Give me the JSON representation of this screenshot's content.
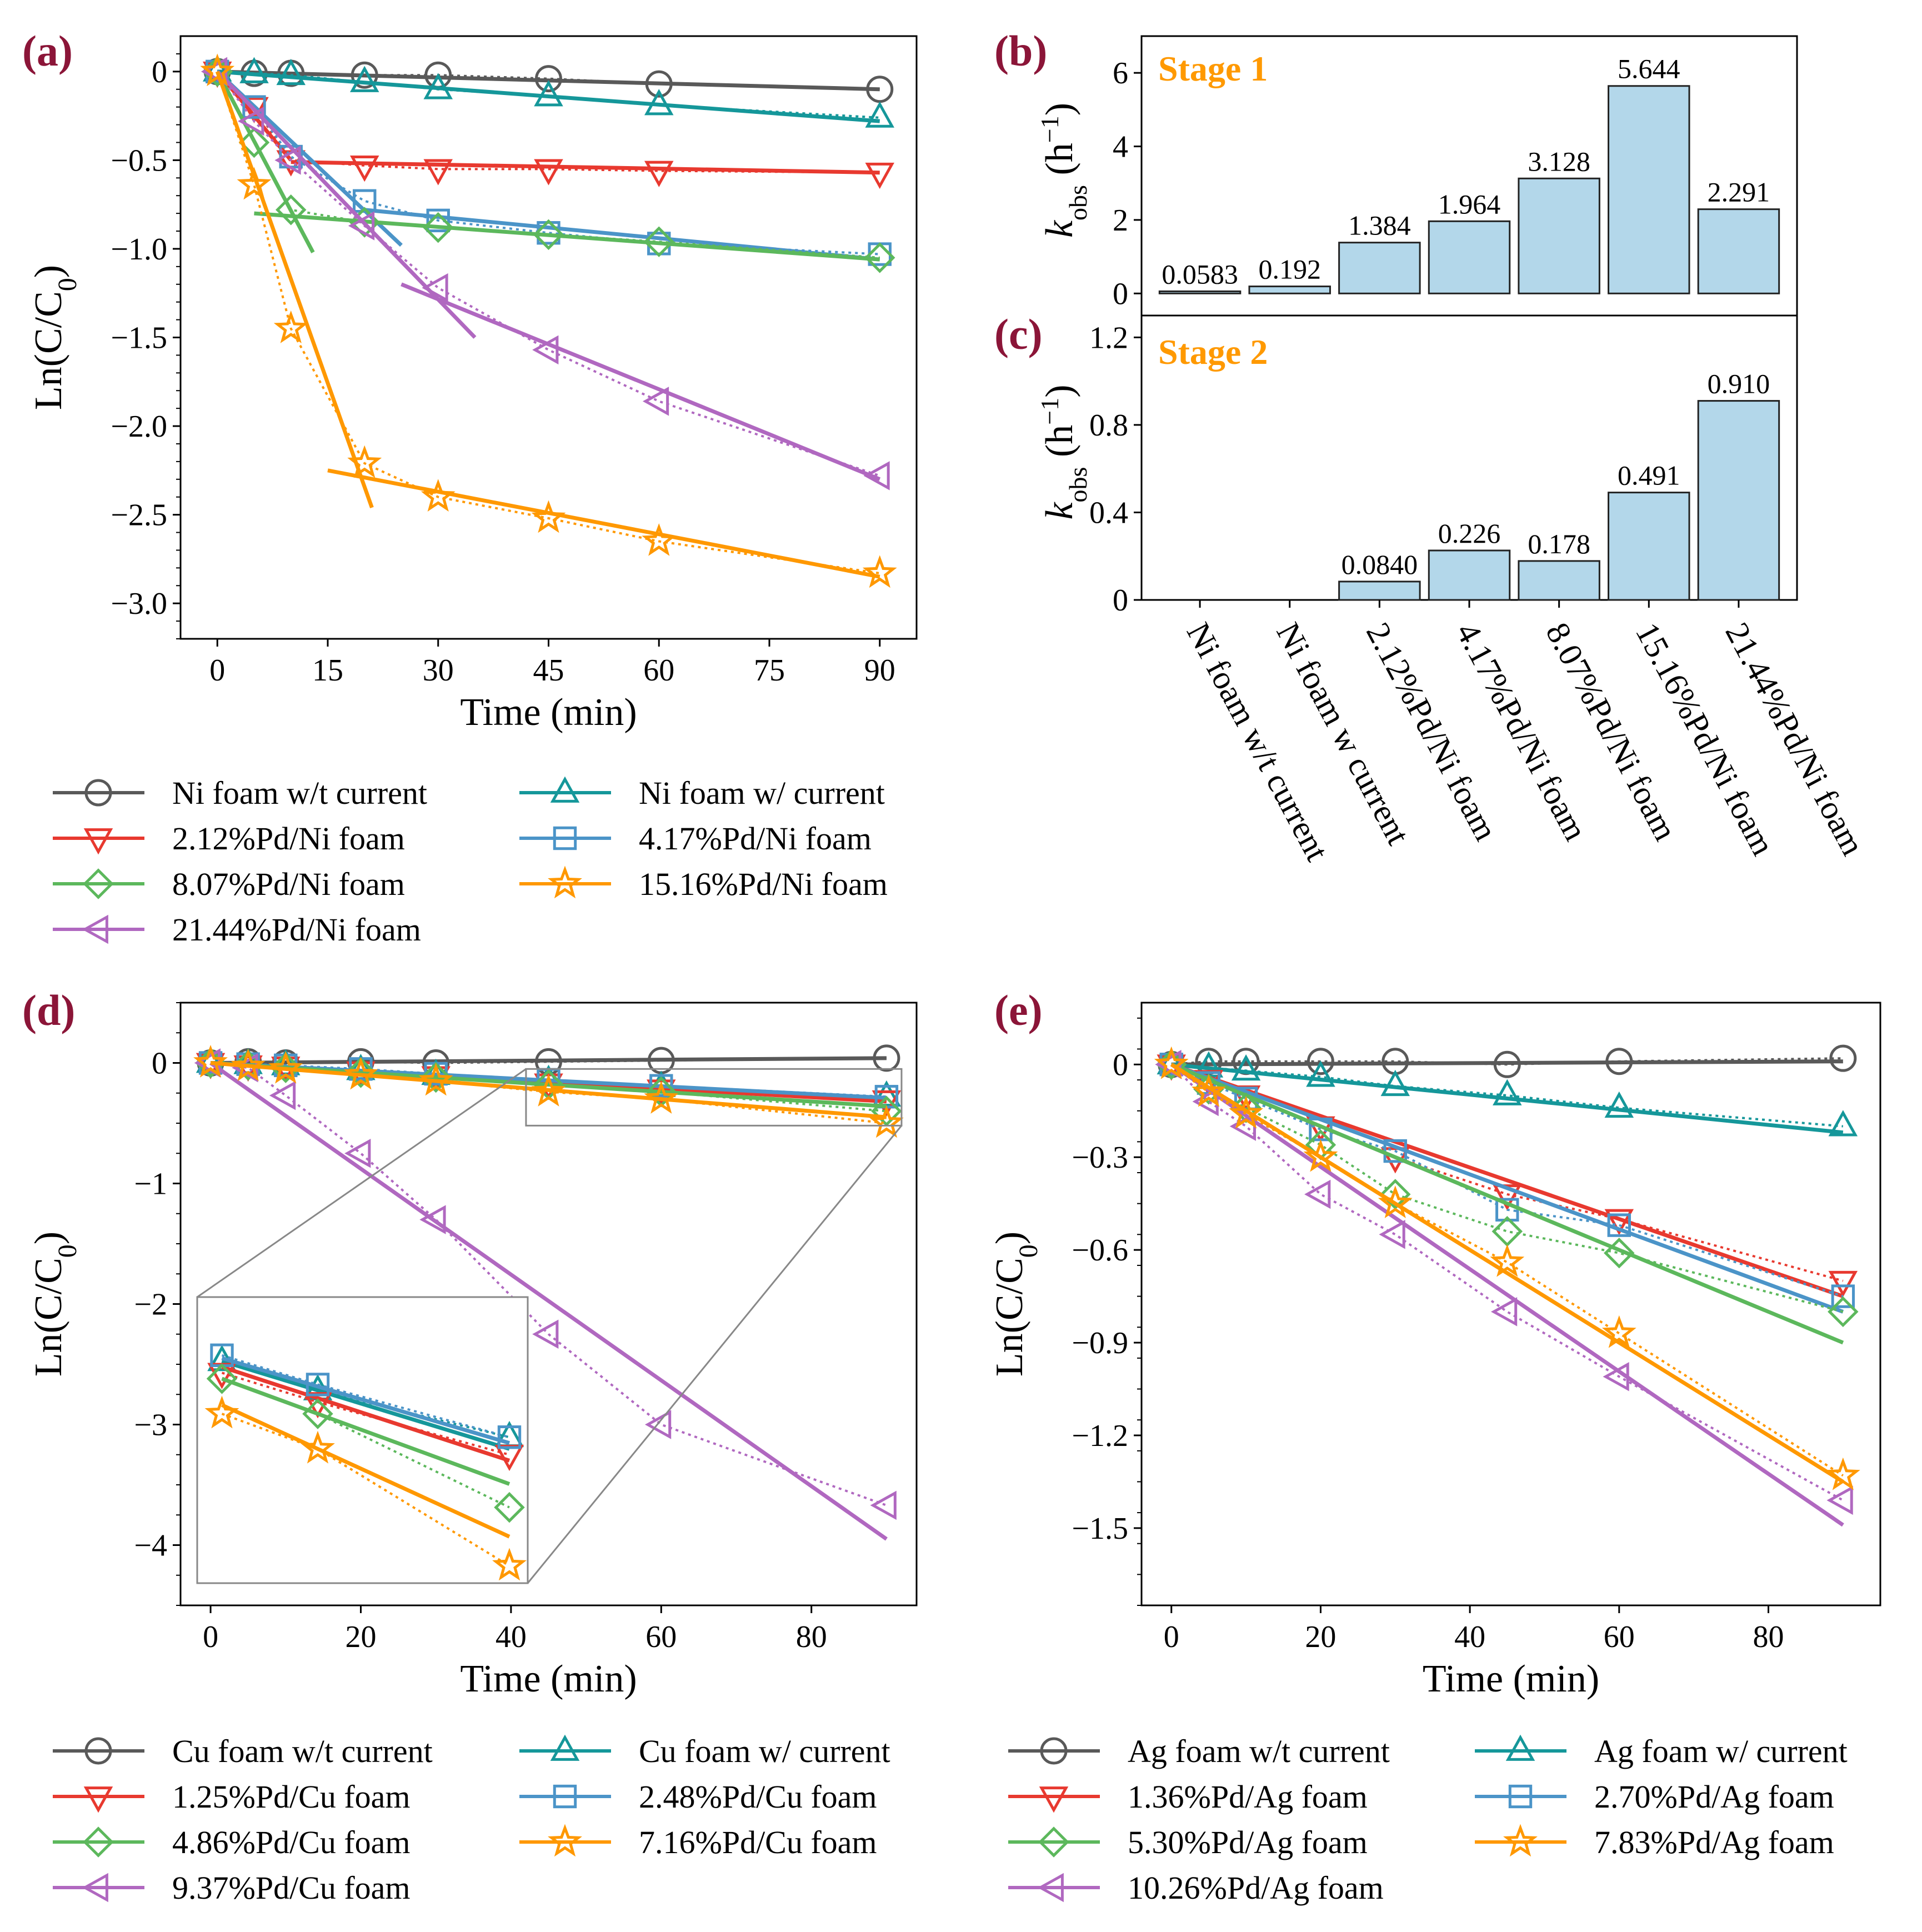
{
  "panel_labels": {
    "a": "(a)",
    "b": "(b)",
    "c": "(c)",
    "d": "(d)",
    "e": "(e)"
  },
  "colors": {
    "gray": "#595959",
    "red": "#e8392f",
    "green": "#5cb85c",
    "purple": "#b068c0",
    "teal": "#15979a",
    "blue": "#4b94c8",
    "orange": "#ff9800",
    "bar_fill": "#b3d7ea"
  },
  "chart_data": [
    {
      "id": "a",
      "type": "line",
      "title": "",
      "xlabel": "Time (min)",
      "ylabel": "Ln(C/C0)",
      "xlim": [
        -5,
        95
      ],
      "ylim": [
        -3.2,
        0.2
      ],
      "xticks": [
        0,
        15,
        30,
        45,
        60,
        75,
        90
      ],
      "yticks": [
        0,
        -0.5,
        -1.0,
        -1.5,
        -2.0,
        -2.5,
        -3.0
      ],
      "ytick_labels": [
        "0",
        "−0.5",
        "−1.0",
        "−1.5",
        "−2.0",
        "−2.5",
        "−3.0"
      ],
      "series": [
        {
          "name": "Ni foam w/t current",
          "color": "gray",
          "marker": "circle",
          "x": [
            0,
            5,
            10,
            20,
            30,
            45,
            60,
            90
          ],
          "y": [
            0,
            -0.01,
            -0.01,
            -0.02,
            -0.02,
            -0.04,
            -0.07,
            -0.1
          ],
          "fits": [
            [
              0,
              0,
              90,
              -0.1
            ]
          ]
        },
        {
          "name": "Ni foam w/ current",
          "color": "teal",
          "marker": "triangle-up",
          "x": [
            0,
            5,
            10,
            20,
            30,
            45,
            60,
            90
          ],
          "y": [
            0,
            -0.01,
            -0.02,
            -0.06,
            -0.1,
            -0.14,
            -0.19,
            -0.26
          ],
          "fits": [
            [
              0,
              0,
              90,
              -0.28
            ]
          ]
        },
        {
          "name": "2.12%Pd/Ni foam",
          "color": "red",
          "marker": "triangle-down",
          "x": [
            0,
            5,
            10,
            20,
            30,
            45,
            60,
            90
          ],
          "y": [
            0,
            -0.2,
            -0.5,
            -0.53,
            -0.55,
            -0.55,
            -0.56,
            -0.57
          ],
          "fits": [
            [
              0,
              0,
              10,
              -0.5
            ],
            [
              10,
              -0.51,
              90,
              -0.57
            ]
          ]
        },
        {
          "name": "4.17%Pd/Ni foam",
          "color": "blue",
          "marker": "square",
          "x": [
            0,
            5,
            10,
            20,
            30,
            45,
            60,
            90
          ],
          "y": [
            0,
            -0.2,
            -0.48,
            -0.73,
            -0.84,
            -0.91,
            -0.97,
            -1.03
          ],
          "fits": [
            [
              0,
              0,
              25,
              -0.98
            ],
            [
              20,
              -0.78,
              90,
              -1.06
            ]
          ]
        },
        {
          "name": "8.07%Pd/Ni foam",
          "color": "green",
          "marker": "diamond",
          "x": [
            0,
            5,
            10,
            20,
            30,
            45,
            60,
            90
          ],
          "y": [
            0,
            -0.4,
            -0.78,
            -0.85,
            -0.88,
            -0.92,
            -0.96,
            -1.05
          ],
          "fits": [
            [
              0,
              0,
              13,
              -1.02
            ],
            [
              5,
              -0.8,
              90,
              -1.06
            ]
          ]
        },
        {
          "name": "21.44%Pd/Ni foam",
          "color": "purple",
          "marker": "triangle-left",
          "x": [
            0,
            5,
            10,
            20,
            30,
            45,
            60,
            90
          ],
          "y": [
            0,
            -0.28,
            -0.5,
            -0.87,
            -1.22,
            -1.57,
            -1.86,
            -2.28
          ],
          "fits": [
            [
              0,
              0,
              35,
              -1.5
            ],
            [
              25,
              -1.2,
              90,
              -2.3
            ]
          ]
        },
        {
          "name": "15.16%Pd/Ni foam",
          "color": "orange",
          "marker": "star",
          "x": [
            0,
            5,
            10,
            20,
            30,
            45,
            60,
            90
          ],
          "y": [
            0,
            -0.64,
            -1.45,
            -2.21,
            -2.4,
            -2.52,
            -2.65,
            -2.83
          ],
          "fits": [
            [
              0,
              0,
              21,
              -2.46
            ],
            [
              15,
              -2.25,
              90,
              -2.85
            ]
          ]
        }
      ]
    },
    {
      "id": "b",
      "type": "bar",
      "annotation": "Stage 1",
      "ylabel": "kobs (h−1)",
      "ylim": [
        -0.6,
        7.0
      ],
      "yticks": [
        0,
        2,
        4,
        6
      ],
      "categories": [
        "Ni foam w/t current",
        "Ni foam w current",
        "2.12%Pd/Ni foam",
        "4.17%Pd/Ni foam",
        "8.07%Pd/Ni foam",
        "15.16%Pd/Ni foam",
        "21.44%Pd/Ni foam"
      ],
      "values": [
        0.0583,
        0.192,
        1.384,
        1.964,
        3.128,
        5.644,
        2.291
      ],
      "value_labels": [
        "0.0583",
        "0.192",
        "1.384",
        "1.964",
        "3.128",
        "5.644",
        "2.291"
      ]
    },
    {
      "id": "c",
      "type": "bar",
      "annotation": "Stage 2",
      "ylabel": "kobs (h−1)",
      "ylim": [
        0,
        1.3
      ],
      "yticks": [
        0,
        0.4,
        0.8,
        1.2
      ],
      "categories": [
        "Ni foam w/t current",
        "Ni foam w current",
        "2.12%Pd/Ni foam",
        "4.17%Pd/Ni foam",
        "8.07%Pd/Ni foam",
        "15.16%Pd/Ni foam",
        "21.44%Pd/Ni foam"
      ],
      "values": [
        0,
        0,
        0.084,
        0.226,
        0.178,
        0.491,
        0.91
      ],
      "value_labels": [
        "",
        "",
        "0.0840",
        "0.226",
        "0.178",
        "0.491",
        "0.910"
      ]
    },
    {
      "id": "d",
      "type": "line",
      "xlabel": "Time (min)",
      "ylabel": "Ln(C/C0)",
      "xlim": [
        -4,
        94
      ],
      "ylim": [
        -4.5,
        0.5
      ],
      "xticks": [
        0,
        20,
        40,
        60,
        80
      ],
      "yticks": [
        0,
        -1,
        -2,
        -3,
        -4
      ],
      "ytick_labels": [
        "0",
        "−1",
        "−2",
        "−3",
        "−4"
      ],
      "series": [
        {
          "name": "Cu foam w/t current",
          "color": "gray",
          "marker": "circle",
          "x": [
            0,
            5,
            10,
            20,
            30,
            45,
            60,
            90
          ],
          "y": [
            0,
            0.01,
            0,
            0.01,
            0,
            0.01,
            0.02,
            0.04
          ],
          "fits": [
            [
              0,
              0,
              90,
              0.04
            ]
          ]
        },
        {
          "name": "Cu foam w/ current",
          "color": "teal",
          "marker": "triangle-up",
          "x": [
            0,
            5,
            10,
            20,
            30,
            45,
            60,
            90
          ],
          "y": [
            0,
            -0.01,
            -0.02,
            -0.06,
            -0.1,
            -0.15,
            -0.2,
            -0.28
          ],
          "fits": [
            [
              0,
              0,
              90,
              -0.3
            ]
          ]
        },
        {
          "name": "1.25%Pd/Cu foam",
          "color": "red",
          "marker": "triangle-down",
          "x": [
            0,
            5,
            10,
            20,
            30,
            45,
            60,
            90
          ],
          "y": [
            0,
            -0.02,
            -0.03,
            -0.07,
            -0.11,
            -0.17,
            -0.22,
            -0.31
          ],
          "fits": [
            [
              0,
              0,
              90,
              -0.32
            ]
          ]
        },
        {
          "name": "2.48%Pd/Cu foam",
          "color": "blue",
          "marker": "square",
          "x": [
            0,
            5,
            10,
            20,
            30,
            45,
            60,
            90
          ],
          "y": [
            0,
            -0.01,
            -0.02,
            -0.05,
            -0.09,
            -0.14,
            -0.19,
            -0.28
          ],
          "fits": [
            [
              0,
              0,
              90,
              -0.29
            ]
          ]
        },
        {
          "name": "4.86%Pd/Cu foam",
          "color": "green",
          "marker": "diamond",
          "x": [
            0,
            5,
            10,
            20,
            30,
            45,
            60,
            90
          ],
          "y": [
            0,
            -0.02,
            -0.04,
            -0.08,
            -0.12,
            -0.18,
            -0.24,
            -0.4
          ],
          "fits": [
            [
              0,
              0,
              90,
              -0.36
            ]
          ]
        },
        {
          "name": "9.37%Pd/Cu foam",
          "color": "purple",
          "marker": "triangle-left",
          "x": [
            0,
            5,
            10,
            20,
            30,
            45,
            60,
            90
          ],
          "y": [
            0,
            -0.04,
            -0.27,
            -0.75,
            -1.3,
            -2.25,
            -3.0,
            -3.67
          ],
          "fits": [
            [
              0,
              0,
              90,
              -3.95
            ]
          ]
        },
        {
          "name": "7.16%Pd/Cu foam",
          "color": "orange",
          "marker": "star",
          "x": [
            0,
            5,
            10,
            20,
            30,
            45,
            60,
            90
          ],
          "y": [
            0,
            -0.03,
            -0.05,
            -0.1,
            -0.15,
            -0.24,
            -0.3,
            -0.5
          ],
          "fits": [
            [
              0,
              0,
              90,
              -0.45
            ]
          ]
        }
      ],
      "inset": {
        "xlim": [
          42,
          92
        ],
        "ylim": [
          -0.52,
          -0.05
        ],
        "xticks": [],
        "yticks": []
      }
    },
    {
      "id": "e",
      "type": "line",
      "xlabel": "Time (min)",
      "ylabel": "Ln(C/C0)",
      "xlim": [
        -4,
        95
      ],
      "ylim": [
        -1.75,
        0.2
      ],
      "xticks": [
        0,
        20,
        40,
        60,
        80
      ],
      "yticks": [
        0,
        -0.3,
        -0.6,
        -0.9,
        -1.2,
        -1.5
      ],
      "ytick_labels": [
        "0",
        "−0.3",
        "−0.6",
        "−0.9",
        "−1.2",
        "−1.5"
      ],
      "series": [
        {
          "name": "Ag foam w/t current",
          "color": "gray",
          "marker": "circle",
          "x": [
            0,
            5,
            10,
            20,
            30,
            45,
            60,
            90
          ],
          "y": [
            0,
            0.01,
            0.01,
            0.01,
            0.01,
            0,
            0.01,
            0.02
          ],
          "fits": [
            [
              0,
              0,
              90,
              0.01
            ]
          ]
        },
        {
          "name": "Ag foam w/ current",
          "color": "teal",
          "marker": "triangle-up",
          "x": [
            0,
            5,
            10,
            20,
            30,
            45,
            60,
            90
          ],
          "y": [
            0,
            -0.01,
            -0.02,
            -0.04,
            -0.07,
            -0.1,
            -0.14,
            -0.2
          ],
          "fits": [
            [
              0,
              0,
              90,
              -0.22
            ]
          ]
        },
        {
          "name": "1.36%Pd/Ag foam",
          "color": "red",
          "marker": "triangle-down",
          "x": [
            0,
            5,
            10,
            20,
            30,
            45,
            60,
            90
          ],
          "y": [
            0,
            -0.05,
            -0.1,
            -0.2,
            -0.3,
            -0.42,
            -0.5,
            -0.7
          ],
          "fits": [
            [
              0,
              0,
              90,
              -0.75
            ]
          ]
        },
        {
          "name": "2.70%Pd/Ag foam",
          "color": "blue",
          "marker": "square",
          "x": [
            0,
            5,
            10,
            20,
            30,
            45,
            60,
            90
          ],
          "y": [
            0,
            -0.06,
            -0.11,
            -0.21,
            -0.28,
            -0.47,
            -0.52,
            -0.75
          ],
          "fits": [
            [
              0,
              0,
              90,
              -0.8
            ]
          ]
        },
        {
          "name": "5.30%Pd/Ag foam",
          "color": "green",
          "marker": "diamond",
          "x": [
            0,
            5,
            10,
            20,
            30,
            45,
            60,
            90
          ],
          "y": [
            0,
            -0.08,
            -0.14,
            -0.26,
            -0.42,
            -0.54,
            -0.61,
            -0.8
          ],
          "fits": [
            [
              0,
              0,
              90,
              -0.9
            ]
          ]
        },
        {
          "name": "10.26%Pd/Ag foam",
          "color": "purple",
          "marker": "triangle-left",
          "x": [
            0,
            5,
            10,
            20,
            30,
            45,
            60,
            90
          ],
          "y": [
            0,
            -0.12,
            -0.2,
            -0.42,
            -0.55,
            -0.8,
            -1.01,
            -1.41
          ],
          "fits": [
            [
              0,
              0,
              90,
              -1.49
            ]
          ]
        },
        {
          "name": "7.83%Pd/Ag foam",
          "color": "orange",
          "marker": "star",
          "x": [
            0,
            5,
            10,
            20,
            30,
            45,
            60,
            90
          ],
          "y": [
            0,
            -0.09,
            -0.16,
            -0.3,
            -0.45,
            -0.64,
            -0.87,
            -1.33
          ],
          "fits": [
            [
              0,
              0,
              90,
              -1.35
            ]
          ]
        }
      ]
    }
  ],
  "legends": {
    "a": [
      [
        "Ni foam w/t current",
        "Ni foam w/ current"
      ],
      [
        "2.12%Pd/Ni foam",
        "4.17%Pd/Ni foam"
      ],
      [
        "8.07%Pd/Ni foam",
        "15.16%Pd/Ni foam"
      ],
      [
        "21.44%Pd/Ni foam"
      ]
    ],
    "d": [
      [
        "Cu foam w/t current",
        "Cu foam w/ current"
      ],
      [
        "1.25%Pd/Cu foam",
        "2.48%Pd/Cu foam"
      ],
      [
        "4.86%Pd/Cu foam",
        "7.16%Pd/Cu foam"
      ],
      [
        "9.37%Pd/Cu foam"
      ]
    ],
    "e": [
      [
        "Ag foam w/t current",
        "Ag foam w/ current"
      ],
      [
        "1.36%Pd/Ag foam",
        "2.70%Pd/Ag foam"
      ],
      [
        "5.30%Pd/Ag foam",
        "7.83%Pd/Ag foam"
      ],
      [
        "10.26%Pd/Ag foam"
      ]
    ]
  }
}
